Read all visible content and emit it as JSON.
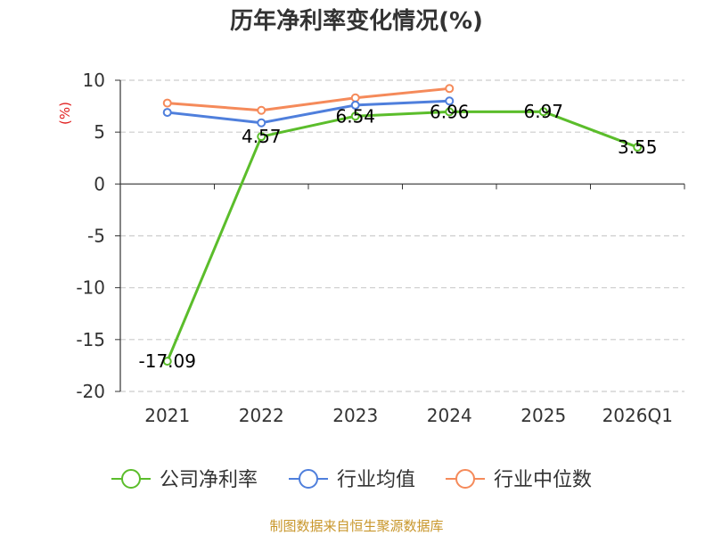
{
  "chart_data": {
    "type": "line",
    "title": "历年净利率变化情况(%)",
    "unit_label": "(%)",
    "categories": [
      "2021",
      "2022",
      "2023",
      "2024",
      "2025",
      "2026Q1"
    ],
    "ylim": [
      -20,
      10
    ],
    "yticks": [
      10,
      5,
      0,
      -5,
      -10,
      -15,
      -20
    ],
    "grid": true,
    "legend_position": "bottom",
    "series": [
      {
        "name": "公司净利率",
        "color": "#5bbd2b",
        "values": [
          -17.09,
          4.57,
          6.54,
          6.96,
          6.97,
          3.55
        ],
        "labels": [
          "-17.09",
          "4.57",
          "6.54",
          "6.96",
          "6.97",
          "3.55"
        ]
      },
      {
        "name": "行业均值",
        "color": "#4f7fdc",
        "values": [
          6.9,
          5.9,
          7.6,
          8.0,
          null,
          null
        ]
      },
      {
        "name": "行业中位数",
        "color": "#f58a5a",
        "values": [
          7.8,
          7.1,
          8.3,
          9.2,
          null,
          null
        ]
      }
    ]
  },
  "footer": {
    "source": "制图数据来自恒生聚源数据库"
  }
}
